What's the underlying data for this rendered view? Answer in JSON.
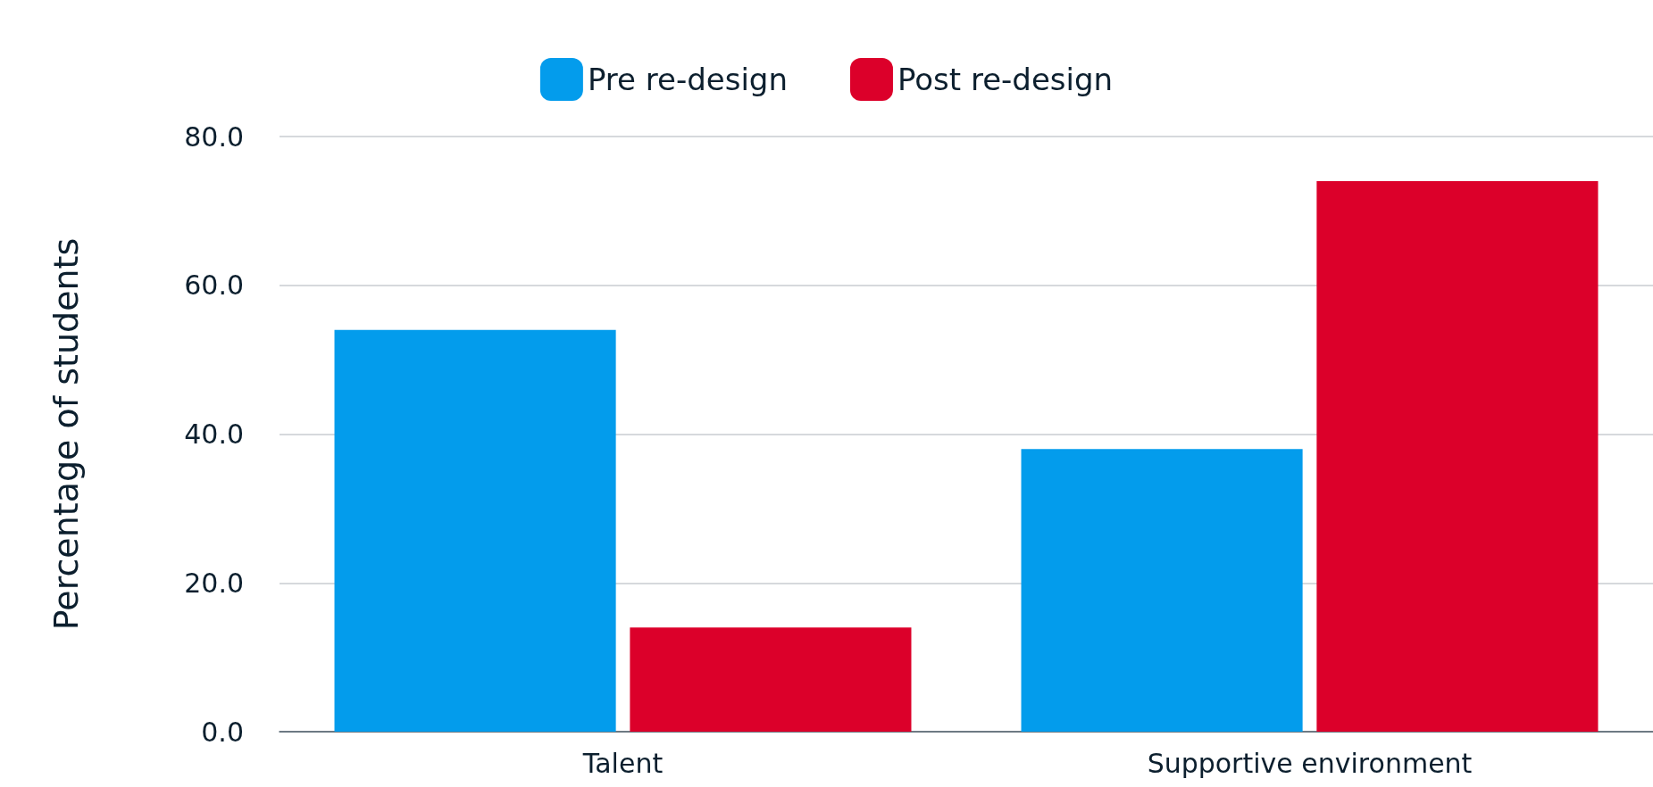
{
  "chart_data": {
    "type": "bar",
    "ylabel": "Percentage of students",
    "categories": [
      "Talent",
      "Supportive environment"
    ],
    "series": [
      {
        "name": "Pre re-design",
        "color": "#039cec",
        "values": [
          54,
          38
        ]
      },
      {
        "name": "Post re-design",
        "color": "#dc002a",
        "values": [
          14,
          74
        ]
      }
    ],
    "ylim": [
      0,
      80
    ],
    "yticks": [
      {
        "value": 0,
        "label": "0.0"
      },
      {
        "value": 20,
        "label": "20.0"
      },
      {
        "value": 40,
        "label": "40.0"
      },
      {
        "value": 60,
        "label": "60.0"
      },
      {
        "value": 80,
        "label": "80.0"
      }
    ],
    "grid": "y",
    "legend": "top"
  }
}
